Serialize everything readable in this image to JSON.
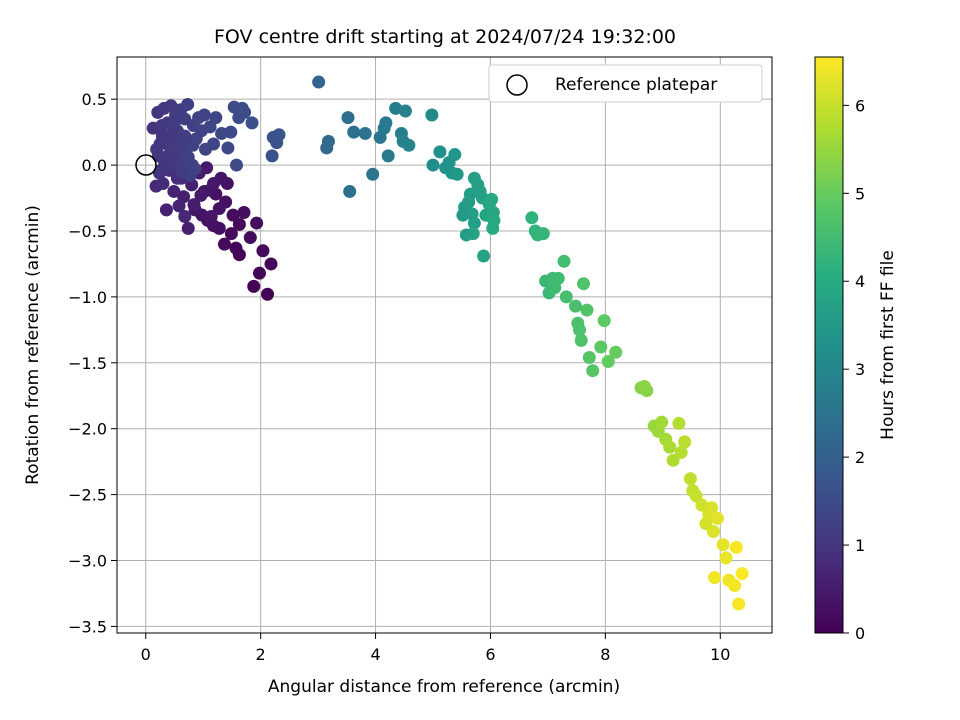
{
  "chart_data": {
    "type": "scatter",
    "title": "FOV centre drift starting at 2024/07/24 19:32:00",
    "xlabel": "Angular distance from reference (arcmin)",
    "ylabel": "Rotation from reference (arcmin)",
    "xlim": [
      -0.5,
      10.9
    ],
    "ylim": [
      -3.55,
      0.82
    ],
    "x_ticks": [
      0,
      2,
      4,
      6,
      8,
      10
    ],
    "x_tick_labels": [
      "0",
      "2",
      "4",
      "6",
      "8",
      "10"
    ],
    "y_ticks": [
      0.5,
      0.0,
      -0.5,
      -1.0,
      -1.5,
      -2.0,
      -2.5,
      -3.0,
      -3.5
    ],
    "y_tick_labels": [
      "0.5",
      "0.0",
      "−0.5",
      "−1.0",
      "−1.5",
      "−2.0",
      "−2.5",
      "−3.0",
      "−3.5"
    ],
    "grid": true,
    "legend": {
      "placement": "top-right",
      "label": "Reference platepar",
      "marker": "open-circle"
    },
    "reference_point": {
      "x": 0,
      "y": 0
    },
    "colorbar": {
      "label": "Hours from first FF file",
      "range": [
        0,
        6.55
      ],
      "ticks": [
        0,
        1,
        2,
        3,
        4,
        5,
        6
      ],
      "tick_labels": [
        "0",
        "1",
        "2",
        "3",
        "4",
        "5",
        "6"
      ],
      "colormap": "viridis"
    },
    "series": [
      {
        "x": [
          2.12,
          1.88,
          1.98,
          2.18,
          2.04,
          1.82,
          1.93,
          1.71,
          1.63,
          1.57,
          1.49,
          1.37,
          1.28,
          1.18,
          1.08,
          0.98,
          0.86,
          1.63,
          1.52,
          1.39,
          1.22,
          1.12,
          1.02,
          0.96,
          1.42,
          1.31,
          1.18,
          1.06,
          0.74,
          0.84,
          0.66,
          1.28,
          0.36,
          1.14,
          0.49,
          0.93,
          0.8,
          0.58,
          0.68,
          0.18,
          0.62,
          0.3,
          0.41,
          0.55,
          0.24
        ],
        "y": [
          -0.98,
          -0.92,
          -0.82,
          -0.75,
          -0.65,
          -0.55,
          -0.44,
          -0.36,
          -0.68,
          -0.63,
          -0.52,
          -0.6,
          -0.48,
          -0.46,
          -0.42,
          -0.38,
          -0.34,
          -0.45,
          -0.38,
          -0.28,
          -0.22,
          -0.19,
          -0.2,
          -0.23,
          -0.14,
          -0.1,
          -0.14,
          -0.02,
          -0.48,
          -0.3,
          -0.24,
          -0.33,
          -0.34,
          -0.39,
          -0.2,
          -0.06,
          -0.15,
          -0.31,
          -0.39,
          -0.16,
          -0.1,
          -0.14,
          -0.04,
          -0.1,
          -0.06
        ],
        "hours": [
          0.02,
          0.05,
          0.09,
          0.12,
          0.16,
          0.2,
          0.24,
          0.28,
          0.05,
          0.1,
          0.15,
          0.18,
          0.22,
          0.27,
          0.3,
          0.34,
          0.38,
          0.14,
          0.2,
          0.26,
          0.3,
          0.34,
          0.4,
          0.44,
          0.3,
          0.36,
          0.42,
          0.48,
          0.55,
          0.5,
          0.58,
          0.34,
          0.6,
          0.4,
          0.66,
          0.52,
          0.62,
          0.68,
          0.72,
          0.75,
          0.78,
          0.8,
          0.84,
          0.86,
          0.9
        ]
      },
      {
        "x": [
          0.13,
          0.21,
          0.19,
          0.32,
          0.28,
          0.44,
          0.37,
          0.52,
          0.61,
          0.56,
          0.68,
          0.73,
          0.83,
          0.78,
          0.92,
          0.97,
          1.02,
          1.12,
          1.22,
          0.88,
          0.65,
          0.47,
          0.33,
          0.25,
          0.38,
          0.55,
          0.71,
          0.45,
          0.59,
          0.41,
          0.64,
          0.22,
          0.29,
          0.34,
          0.43,
          0.52,
          0.49,
          0.57,
          0.74,
          0.82,
          0.68,
          0.81,
          0.26,
          0.39,
          0.47,
          0.63,
          0.77,
          0.86,
          1.04,
          1.18,
          1.32,
          1.48,
          1.62,
          1.54,
          1.43,
          1.72,
          1.85,
          1.58,
          1.66,
          1.68
        ],
        "y": [
          0.28,
          0.4,
          0.12,
          0.43,
          0.3,
          0.45,
          0.22,
          0.38,
          0.42,
          0.18,
          0.35,
          0.46,
          0.3,
          0.15,
          0.36,
          0.26,
          0.38,
          0.29,
          0.36,
          0.2,
          0.08,
          0.1,
          0.02,
          0.16,
          0.32,
          0.26,
          0.19,
          0.0,
          0.12,
          0.19,
          0.03,
          0.07,
          0.22,
          0.06,
          0.13,
          0.34,
          0.25,
          0.1,
          0.06,
          0.15,
          0.22,
          0.0,
          -0.04,
          -0.02,
          0.05,
          -0.05,
          -0.08,
          -0.03,
          0.12,
          0.16,
          0.24,
          0.25,
          0.36,
          0.44,
          0.13,
          0.4,
          0.32,
          0.0,
          0.42,
          0.43
        ],
        "hours": [
          0.95,
          1.0,
          1.02,
          1.05,
          1.08,
          1.1,
          1.12,
          1.15,
          1.17,
          1.19,
          1.2,
          1.22,
          1.24,
          1.26,
          1.28,
          1.3,
          1.32,
          1.34,
          1.36,
          1.3,
          1.12,
          1.07,
          1.03,
          1.0,
          1.11,
          1.15,
          1.21,
          1.05,
          1.14,
          1.09,
          1.16,
          0.98,
          1.04,
          1.06,
          1.1,
          1.18,
          1.13,
          1.16,
          1.23,
          1.27,
          1.19,
          1.25,
          0.97,
          1.06,
          1.09,
          1.17,
          1.22,
          1.28,
          1.33,
          1.38,
          1.4,
          1.44,
          1.48,
          1.5,
          1.42,
          1.55,
          1.62,
          1.46,
          1.52,
          1.53
        ]
      },
      {
        "x": [
          2.2,
          2.28,
          2.32,
          2.22,
          3.01,
          3.15,
          3.18,
          3.52,
          3.55,
          3.62,
          3.82,
          3.95,
          4.08,
          4.15,
          4.18,
          4.22,
          4.35,
          4.45,
          4.52,
          4.48,
          4.58,
          4.98
        ],
        "y": [
          0.07,
          0.17,
          0.23,
          0.21,
          0.63,
          0.13,
          0.18,
          0.36,
          -0.2,
          0.25,
          0.24,
          -0.07,
          0.21,
          0.28,
          0.32,
          0.07,
          0.43,
          0.24,
          0.41,
          0.18,
          0.15,
          0.38
        ],
        "hours": [
          1.62,
          1.68,
          1.72,
          1.66,
          2.1,
          2.2,
          2.25,
          2.32,
          2.36,
          2.4,
          2.46,
          2.5,
          2.56,
          2.62,
          2.66,
          2.68,
          2.74,
          2.8,
          2.84,
          2.86,
          2.9,
          3.1
        ]
      },
      {
        "x": [
          5.0,
          5.12,
          5.22,
          5.28,
          5.33,
          5.38,
          5.42,
          5.55,
          5.62,
          5.65,
          5.72,
          5.78,
          5.82,
          5.86,
          5.88,
          5.92,
          5.98,
          6.02,
          6.05,
          6.06,
          6.04,
          5.7,
          5.58,
          5.68,
          5.52,
          5.72
        ],
        "y": [
          0.0,
          0.1,
          -0.02,
          0.02,
          -0.06,
          0.08,
          -0.07,
          -0.32,
          -0.28,
          -0.22,
          -0.44,
          -0.15,
          -0.2,
          -0.25,
          -0.69,
          -0.38,
          -0.3,
          -0.26,
          -0.36,
          -0.42,
          -0.48,
          -0.52,
          -0.53,
          -0.37,
          -0.38,
          -0.1
        ],
        "hours": [
          3.2,
          3.25,
          3.3,
          3.34,
          3.38,
          3.42,
          3.46,
          3.55,
          3.58,
          3.6,
          3.64,
          3.68,
          3.7,
          3.72,
          3.76,
          3.8,
          3.84,
          3.88,
          3.92,
          3.96,
          3.98,
          3.82,
          3.62,
          3.66,
          3.56,
          3.7
        ]
      },
      {
        "x": [
          6.72,
          6.78,
          6.82,
          6.92,
          6.96,
          7.02,
          7.08,
          7.12,
          7.18,
          7.28,
          7.32,
          7.48,
          7.52,
          7.55,
          7.58,
          7.62,
          7.68,
          7.72,
          7.78,
          7.92,
          7.98,
          8.05,
          8.18,
          8.62,
          8.72,
          8.68
        ],
        "y": [
          -0.4,
          -0.5,
          -0.53,
          -0.52,
          -0.88,
          -0.97,
          -0.86,
          -0.93,
          -0.86,
          -0.73,
          -1.0,
          -1.07,
          -1.2,
          -1.25,
          -1.33,
          -0.9,
          -1.1,
          -1.46,
          -1.56,
          -1.38,
          -1.18,
          -1.49,
          -1.42,
          -1.69,
          -1.71,
          -1.68
        ],
        "hours": [
          4.2,
          4.24,
          4.28,
          4.32,
          4.36,
          4.4,
          4.44,
          4.46,
          4.48,
          4.52,
          4.56,
          4.62,
          4.64,
          4.66,
          4.68,
          4.7,
          4.74,
          4.78,
          4.8,
          4.86,
          4.9,
          4.94,
          4.98,
          5.3,
          5.34,
          5.38
        ]
      },
      {
        "x": [
          8.85,
          8.92,
          8.98,
          9.05,
          9.12,
          9.18,
          9.28,
          9.32,
          9.38,
          9.48,
          9.52,
          9.58,
          9.68,
          9.75,
          9.8,
          9.85,
          9.88,
          9.95,
          10.05,
          10.1,
          10.15,
          10.25,
          10.28,
          10.32,
          10.38,
          9.9
        ],
        "y": [
          -1.98,
          -2.02,
          -1.95,
          -2.08,
          -2.14,
          -2.24,
          -1.96,
          -2.18,
          -2.1,
          -2.38,
          -2.47,
          -2.51,
          -2.58,
          -2.72,
          -2.65,
          -2.6,
          -2.78,
          -2.68,
          -2.88,
          -2.98,
          -3.15,
          -3.19,
          -2.9,
          -3.33,
          -3.1,
          -3.13
        ],
        "hours": [
          5.5,
          5.55,
          5.6,
          5.65,
          5.7,
          5.75,
          5.78,
          5.8,
          5.85,
          5.9,
          5.95,
          6.0,
          6.05,
          6.1,
          6.15,
          6.18,
          6.2,
          6.25,
          6.3,
          6.35,
          6.4,
          6.45,
          6.48,
          6.5,
          6.52,
          6.42
        ]
      }
    ]
  }
}
